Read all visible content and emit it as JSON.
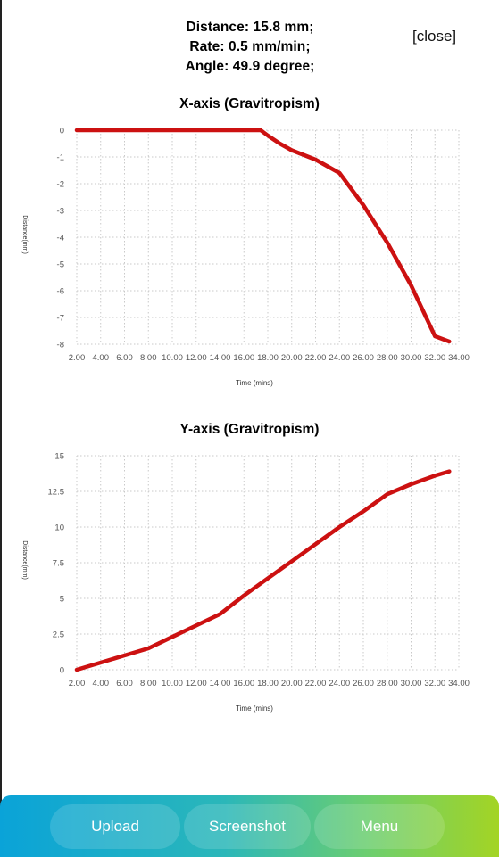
{
  "header": {
    "distance": "Distance: 15.8 mm;",
    "rate": "Rate: 0.5 mm/min;",
    "angle": "Angle: 49.9 degree;",
    "close_label": "[close]"
  },
  "chart_data": [
    {
      "type": "line",
      "title": "X-axis (Gravitropism)",
      "xlabel": "Time (mins)",
      "ylabel": "Distance(mm)",
      "x_tick_labels": [
        "2.00",
        "4.00",
        "6.00",
        "8.00",
        "10.00",
        "12.00",
        "14.00",
        "16.00",
        "18.00",
        "20.00",
        "22.00",
        "24.00",
        "26.00",
        "28.00",
        "30.00",
        "32.00",
        "34.00"
      ],
      "y_tick_labels": [
        "0",
        "-1",
        "-2",
        "-3",
        "-4",
        "-5",
        "-6",
        "-7",
        "-8"
      ],
      "ylim": [
        -8,
        0
      ],
      "xlim": [
        2,
        34
      ],
      "grid": true,
      "line_color": "#cc1111",
      "series": [
        {
          "x": [
            2,
            4,
            6,
            8,
            10,
            12,
            14,
            16,
            17.4,
            18,
            19,
            20,
            22,
            24,
            26,
            28,
            30,
            32,
            33.2
          ],
          "values": [
            0,
            0,
            0,
            0,
            0,
            0,
            0,
            0,
            0,
            -0.2,
            -0.5,
            -0.75,
            -1.1,
            -1.6,
            -2.8,
            -4.2,
            -5.8,
            -7.7,
            -7.9
          ]
        }
      ]
    },
    {
      "type": "line",
      "title": "Y-axis (Gravitropism)",
      "xlabel": "Time (mins)",
      "ylabel": "Distance(mm)",
      "x_tick_labels": [
        "2.00",
        "4.00",
        "6.00",
        "8.00",
        "10.00",
        "12.00",
        "14.00",
        "16.00",
        "18.00",
        "20.00",
        "22.00",
        "24.00",
        "26.00",
        "28.00",
        "30.00",
        "32.00",
        "34.00"
      ],
      "y_tick_labels": [
        "15",
        "12.5",
        "10",
        "7.5",
        "5",
        "2.5",
        "0"
      ],
      "ylim": [
        0,
        15
      ],
      "xlim": [
        2,
        34
      ],
      "grid": true,
      "line_color": "#cc1111",
      "series": [
        {
          "x": [
            2,
            4,
            6,
            8,
            10,
            12,
            14,
            16,
            18,
            20,
            22,
            24,
            26,
            28,
            30,
            32,
            33.2
          ],
          "values": [
            0,
            0.5,
            1.0,
            1.5,
            2.3,
            3.1,
            3.9,
            5.2,
            6.4,
            7.6,
            8.8,
            10.0,
            11.1,
            12.3,
            13.0,
            13.6,
            13.9
          ]
        }
      ]
    }
  ],
  "bottom_bar": {
    "upload_label": "Upload",
    "screenshot_label": "Screenshot",
    "menu_label": "Menu"
  }
}
